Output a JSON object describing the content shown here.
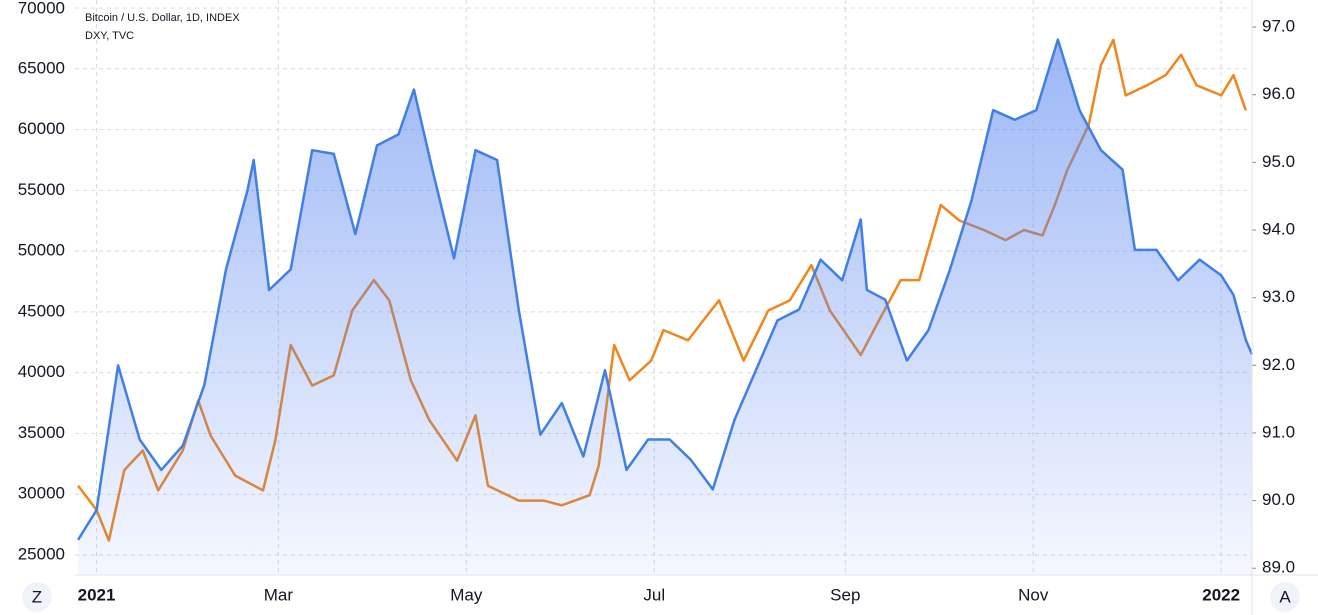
{
  "chart_data": {
    "type": "line",
    "legend_lines": [
      "Bitcoin / U.S. Dollar, 1D, INDEX",
      "DXY, TVC"
    ],
    "buttons": [
      "Z",
      "A"
    ],
    "xlim": [
      "2020-12-25",
      "2022-01-11"
    ],
    "xticks": [
      {
        "value": "2021-01-01",
        "label": "2021"
      },
      {
        "value": "2021-03-01",
        "label": "Mar"
      },
      {
        "value": "2021-05-01",
        "label": "May"
      },
      {
        "value": "2021-07-01",
        "label": "Jul"
      },
      {
        "value": "2021-09-01",
        "label": "Sep"
      },
      {
        "value": "2021-11-01",
        "label": "Nov"
      },
      {
        "value": "2022-01-01",
        "label": "2022"
      }
    ],
    "ylim": [
      23355,
      70660
    ],
    "yticks": [
      25000,
      30000,
      35000,
      40000,
      45000,
      50000,
      55000,
      60000,
      65000,
      70000
    ],
    "y2lim": [
      88.9,
      97.4
    ],
    "y2ticks": [
      {
        "value": 89,
        "label": "89.0"
      },
      {
        "value": 90,
        "label": "90.0"
      },
      {
        "value": 91,
        "label": "91.0"
      },
      {
        "value": 92,
        "label": "92.0"
      },
      {
        "value": 93,
        "label": "93.0"
      },
      {
        "value": 94,
        "label": "94.0"
      },
      {
        "value": 95,
        "label": "95.0"
      },
      {
        "value": 96,
        "label": "96.0"
      },
      {
        "value": 97,
        "label": "97.0"
      }
    ],
    "grid": true,
    "series": [
      {
        "name": "DXY",
        "color": "#f0861d",
        "axis": "y2",
        "x": [
          "2020-12-26",
          "2021-01-01",
          "2021-01-05",
          "2021-01-10",
          "2021-01-16",
          "2021-01-21",
          "2021-01-29",
          "2021-02-03",
          "2021-02-07",
          "2021-02-15",
          "2021-02-24",
          "2021-02-28",
          "2021-03-05",
          "2021-03-12",
          "2021-03-19",
          "2021-03-25",
          "2021-04-01",
          "2021-04-06",
          "2021-04-13",
          "2021-04-19",
          "2021-04-28",
          "2021-05-04",
          "2021-05-08",
          "2021-05-18",
          "2021-05-26",
          "2021-06-01",
          "2021-06-10",
          "2021-06-13",
          "2021-06-18",
          "2021-06-23",
          "2021-06-30",
          "2021-07-04",
          "2021-07-12",
          "2021-07-17",
          "2021-07-22",
          "2021-07-30",
          "2021-08-07",
          "2021-08-14",
          "2021-08-21",
          "2021-08-27",
          "2021-09-06",
          "2021-09-12",
          "2021-09-19",
          "2021-09-25",
          "2021-10-02",
          "2021-10-08",
          "2021-10-16",
          "2021-10-23",
          "2021-10-29",
          "2021-11-04",
          "2021-11-08",
          "2021-11-12",
          "2021-11-19",
          "2021-11-23",
          "2021-11-27",
          "2021-12-01",
          "2021-12-08",
          "2021-12-14",
          "2021-12-19",
          "2021-12-24",
          "2022-01-01",
          "2022-01-05",
          "2022-01-09"
        ],
        "values": [
          90.22,
          89.86,
          89.41,
          90.45,
          90.74,
          90.15,
          90.74,
          91.48,
          90.96,
          90.37,
          90.15,
          90.89,
          92.3,
          91.7,
          91.85,
          92.81,
          93.26,
          92.96,
          91.78,
          91.19,
          90.59,
          91.26,
          90.22,
          90.0,
          90.0,
          89.93,
          90.08,
          90.52,
          92.3,
          91.78,
          92.07,
          92.52,
          92.37,
          92.67,
          92.96,
          92.07,
          92.81,
          92.96,
          93.48,
          92.81,
          92.15,
          92.67,
          93.26,
          93.26,
          94.37,
          94.14,
          94.0,
          93.85,
          94.0,
          93.92,
          94.37,
          94.88,
          95.55,
          96.44,
          96.81,
          95.99,
          96.14,
          96.29,
          96.59,
          96.14,
          95.99,
          96.29,
          95.77
        ]
      },
      {
        "name": "Bitcoin / U.S. Dollar",
        "color": "#3f7fe6",
        "x": [
          "2020-12-26",
          "2021-01-01",
          "2021-01-08",
          "2021-01-15",
          "2021-01-22",
          "2021-01-29",
          "2021-02-05",
          "2021-02-12",
          "2021-02-19",
          "2021-02-21",
          "2021-02-26",
          "2021-03-05",
          "2021-03-12",
          "2021-03-19",
          "2021-03-26",
          "2021-04-02",
          "2021-04-09",
          "2021-04-14",
          "2021-04-20",
          "2021-04-27",
          "2021-05-04",
          "2021-05-11",
          "2021-05-18",
          "2021-05-25",
          "2021-06-01",
          "2021-06-08",
          "2021-06-15",
          "2021-06-22",
          "2021-06-29",
          "2021-07-06",
          "2021-07-13",
          "2021-07-20",
          "2021-07-27",
          "2021-08-03",
          "2021-08-10",
          "2021-08-17",
          "2021-08-24",
          "2021-08-31",
          "2021-09-06",
          "2021-09-08",
          "2021-09-14",
          "2021-09-21",
          "2021-09-28",
          "2021-10-05",
          "2021-10-12",
          "2021-10-19",
          "2021-10-26",
          "2021-11-02",
          "2021-11-09",
          "2021-11-16",
          "2021-11-23",
          "2021-11-30",
          "2021-12-04",
          "2021-12-11",
          "2021-12-18",
          "2021-12-25",
          "2022-01-01",
          "2022-01-05",
          "2022-01-09",
          "2022-01-11"
        ],
        "values": [
          26250,
          28700,
          40600,
          34500,
          32000,
          34000,
          39000,
          48500,
          55000,
          57500,
          46800,
          48500,
          58300,
          58000,
          51400,
          58700,
          59600,
          63300,
          56700,
          49400,
          58300,
          57500,
          45200,
          34900,
          37500,
          33100,
          40200,
          32000,
          34500,
          34500,
          32800,
          30400,
          36100,
          40200,
          44300,
          45200,
          49300,
          47600,
          52600,
          46800,
          46000,
          41000,
          43500,
          48500,
          54200,
          61600,
          60800,
          61600,
          67400,
          61600,
          58300,
          56700,
          50100,
          50100,
          47600,
          49300,
          48000,
          46400,
          42700,
          41500
        ]
      }
    ]
  }
}
